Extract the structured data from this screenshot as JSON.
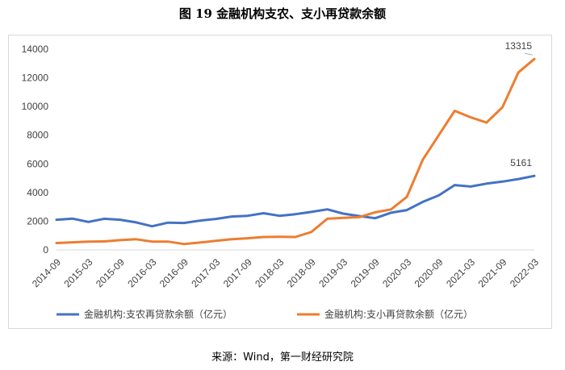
{
  "title": "图 19  金融机构支农、支小再贷款余额",
  "source": "来源：Wind，第一财经研究院",
  "chart_data": {
    "type": "line",
    "grid": false,
    "legend_position": "bottom",
    "ylim": [
      0,
      14000
    ],
    "yticks": [
      0,
      2000,
      4000,
      6000,
      8000,
      10000,
      12000,
      14000
    ],
    "xtick_labels": [
      "2014-09",
      "2015-03",
      "2015-09",
      "2016-03",
      "2016-09",
      "2017-03",
      "2017-09",
      "2018-03",
      "2018-09",
      "2019-03",
      "2019-09",
      "2020-03",
      "2020-09",
      "2021-03",
      "2021-09",
      "2022-03"
    ],
    "x": [
      "2014-09",
      "2014-12",
      "2015-03",
      "2015-06",
      "2015-09",
      "2015-12",
      "2016-03",
      "2016-06",
      "2016-09",
      "2016-12",
      "2017-03",
      "2017-06",
      "2017-09",
      "2017-12",
      "2018-03",
      "2018-06",
      "2018-09",
      "2018-12",
      "2019-03",
      "2019-06",
      "2019-09",
      "2019-12",
      "2020-03",
      "2020-06",
      "2020-09",
      "2020-12",
      "2021-03",
      "2021-06",
      "2021-09",
      "2021-12",
      "2022-03"
    ],
    "series": [
      {
        "name": "金融机构:支农再贷款余额（亿元）",
        "color": "#4472c4",
        "values": [
          2100,
          2180,
          1950,
          2170,
          2100,
          1920,
          1650,
          1900,
          1880,
          2040,
          2160,
          2330,
          2380,
          2560,
          2380,
          2490,
          2650,
          2830,
          2530,
          2360,
          2210,
          2590,
          2780,
          3350,
          3800,
          4520,
          4420,
          4620,
          4760,
          4940,
          5161
        ],
        "end_label": "5161"
      },
      {
        "name": "金融机构:支小再贷款余额（亿元）",
        "color": "#ed7d31",
        "values": [
          480,
          530,
          580,
          590,
          680,
          740,
          580,
          580,
          410,
          510,
          630,
          740,
          810,
          900,
          910,
          900,
          1250,
          2170,
          2230,
          2280,
          2620,
          2820,
          3700,
          6300,
          8000,
          9700,
          9250,
          8880,
          9950,
          12380,
          13315
        ],
        "end_label": "13315"
      }
    ]
  }
}
